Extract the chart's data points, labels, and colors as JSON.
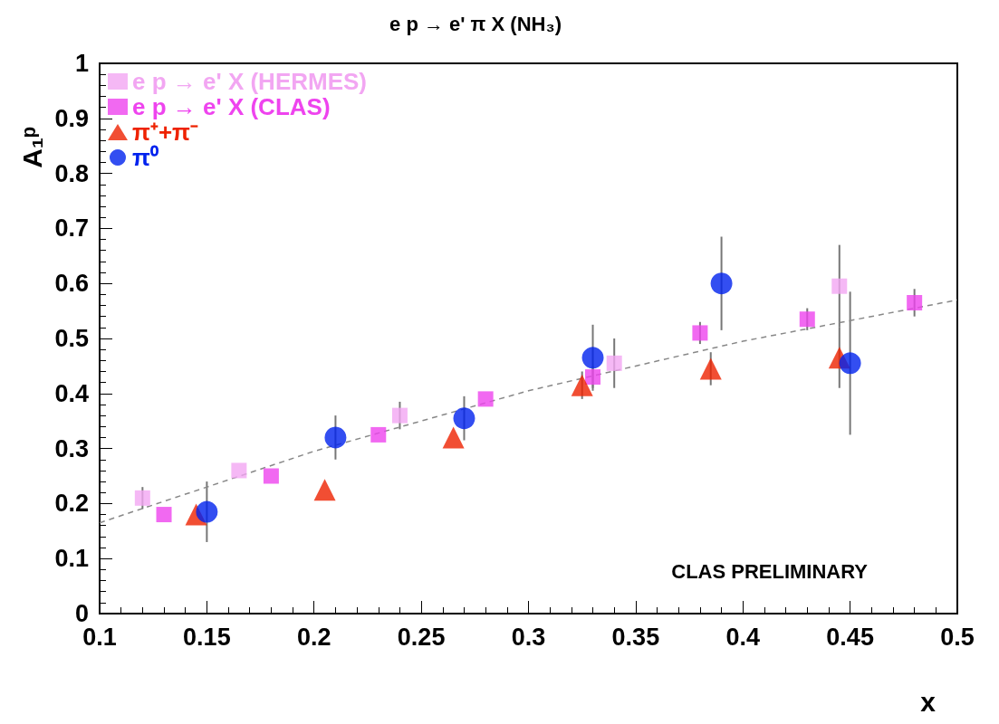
{
  "chart_data": {
    "type": "scatter",
    "title": "e p → e' π X (NH₃)",
    "xlabel": "x",
    "ylabel": "A₁ᵖ",
    "xlim": [
      0.1,
      0.5
    ],
    "xticks": [
      0.1,
      0.15,
      0.2,
      0.25,
      0.3,
      0.35,
      0.4,
      0.45,
      0.5
    ],
    "ylim": [
      0,
      1
    ],
    "yticks": [
      0,
      0.1,
      0.2,
      0.3,
      0.4,
      0.5,
      0.6,
      0.7,
      0.8,
      0.9,
      1
    ],
    "grid": false,
    "legend": "top left",
    "annotations": [
      "CLAS PRELIMINARY"
    ],
    "series": [
      {
        "type": "line",
        "color": "#888888",
        "line_style": "dashed",
        "marker": "none",
        "x": [
          0.1,
          0.2,
          0.3,
          0.4,
          0.5
        ],
        "values": [
          0.165,
          0.295,
          0.405,
          0.495,
          0.57
        ]
      },
      {
        "name": "e p → e' X (HERMES)",
        "color": "#f2a6f2",
        "marker": "square",
        "x": [
          0.12,
          0.165,
          0.24,
          0.34,
          0.445
        ],
        "values": [
          0.21,
          0.26,
          0.36,
          0.455,
          0.595
        ],
        "errors": [
          0.02,
          null,
          0.025,
          0.045,
          0.075
        ]
      },
      {
        "name": "e p → e' X (CLAS)",
        "color": "#ee44ee",
        "marker": "square",
        "x": [
          0.13,
          0.18,
          0.23,
          0.28,
          0.33,
          0.38,
          0.43,
          0.48
        ],
        "values": [
          0.18,
          0.25,
          0.325,
          0.39,
          0.43,
          0.51,
          0.535,
          0.565
        ],
        "errors": [
          null,
          null,
          null,
          null,
          0.02,
          0.02,
          0.02,
          0.025
        ]
      },
      {
        "name": "π⁺+π⁻",
        "color": "#ee2200",
        "marker": "triangle",
        "x": [
          0.145,
          0.205,
          0.265,
          0.325,
          0.385,
          0.445
        ],
        "values": [
          0.18,
          0.225,
          0.32,
          0.415,
          0.445,
          0.465
        ],
        "errors": [
          null,
          null,
          null,
          0.025,
          0.03,
          0.055
        ]
      },
      {
        "name": "π⁰",
        "color": "#0022ee",
        "marker": "circle",
        "x": [
          0.15,
          0.21,
          0.27,
          0.33,
          0.39,
          0.45
        ],
        "values": [
          0.185,
          0.32,
          0.355,
          0.465,
          0.6,
          0.455
        ],
        "errors": [
          0.055,
          0.04,
          0.04,
          0.06,
          0.085,
          0.13
        ]
      }
    ]
  }
}
